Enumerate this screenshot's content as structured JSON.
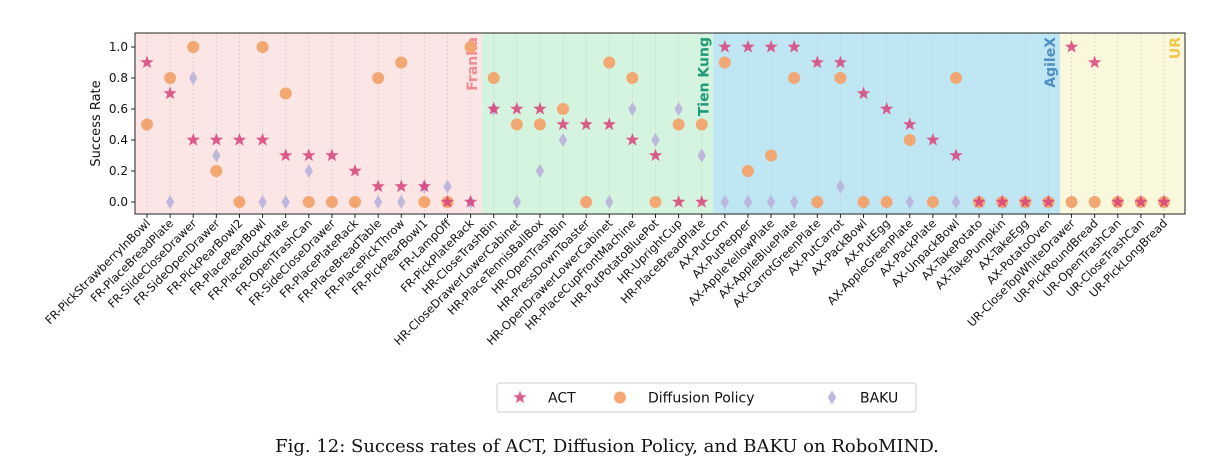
{
  "chart_data": {
    "type": "scatter",
    "ylabel": "Success Rate",
    "ylim": [
      -0.15,
      1.1
    ],
    "yticks": [
      "0.0",
      "0.2",
      "0.4",
      "0.6",
      "0.8",
      "1.0"
    ],
    "grid": "dotted vertical",
    "legend_position": "bottom-center",
    "categories": [
      "FR-PickStrawberryInBowl",
      "FR-PlaceBreadPlate",
      "FR-SlideCloseDrawer",
      "FR-SideOpenDrawer",
      "FR-PickPearBowl2",
      "FR-PlacePearBowl",
      "FR-PlaceBlockPlate",
      "FR-OpenTrashCan",
      "FR-SideCloseDrawer",
      "FR-PlacePlateRack",
      "FR-PlaceBreadTable",
      "FR-PlacePickThrow",
      "FR-PickPearBowl1",
      "FR-LampOff",
      "FR-PickPlateRack",
      "HR-CloseTrashBin",
      "HR-CloseDrawerLowerCabinet",
      "HR-PlaceTennisBallBox",
      "HR-OpenTrashBin",
      "HR-PressDownToaster",
      "HR-OpenDrawerLowerCabinet",
      "HR-PlaceCupFrontMachine",
      "HR-PutPotatoBluePot",
      "HR-UprightCup",
      "HR-PlaceBreadPlate",
      "AX-PutCorn",
      "AX-PutPepper",
      "AX-AppleYellowPlate",
      "AX-AppleBluePlate",
      "AX-CarrotGreenPlate",
      "AX-PutCarrot",
      "AX-PackBowl",
      "AX-PutEgg",
      "AX-AppleGreenPlate",
      "AX-PackPlate",
      "AX-UnpackBowl",
      "AX-TakePotato",
      "AX-TakePumpkin",
      "AX-TakeEgg",
      "AX-PotatoOven",
      "UR-CloseTopWhiteDrawer",
      "UR-PickRoundBread",
      "UR-OpenTrashCan",
      "UR-CloseTrashCan",
      "UR-PickLongBread"
    ],
    "regions": [
      {
        "label": "Franka",
        "start": 0,
        "end": 14,
        "color": "#fbe5e5",
        "label_color": "#f28b90"
      },
      {
        "label": "Tien Kung",
        "start": 15,
        "end": 24,
        "color": "#d4f4df",
        "label_color": "#1e9a78"
      },
      {
        "label": "AgileX",
        "start": 25,
        "end": 39,
        "color": "#bfe6f3",
        "label_color": "#4f8fc2"
      },
      {
        "label": "UR",
        "start": 40,
        "end": 44,
        "color": "#faf8dc",
        "label_color": "#f2c84b"
      }
    ],
    "series": [
      {
        "name": "ACT",
        "marker": "star",
        "color": "#d8427a",
        "values": [
          0.9,
          0.7,
          0.4,
          0.4,
          0.4,
          0.4,
          0.3,
          0.3,
          0.3,
          0.2,
          0.1,
          0.1,
          0.1,
          0.0,
          0.0,
          0.6,
          0.6,
          0.6,
          0.5,
          0.5,
          0.5,
          0.4,
          0.3,
          0.0,
          0.0,
          1.0,
          1.0,
          1.0,
          1.0,
          0.9,
          0.9,
          0.7,
          0.6,
          0.5,
          0.4,
          0.3,
          0.0,
          0.0,
          0.0,
          0.0,
          1.0,
          0.9,
          0.0,
          0.0,
          0.0
        ]
      },
      {
        "name": "Diffusion Policy",
        "marker": "circle",
        "color": "#f2a36b",
        "values": [
          0.5,
          0.8,
          1.0,
          0.2,
          0.0,
          1.0,
          0.7,
          0.0,
          0.0,
          0.0,
          0.8,
          0.9,
          0.0,
          0.0,
          1.0,
          0.8,
          0.5,
          0.5,
          0.6,
          0.0,
          0.9,
          0.8,
          0.0,
          0.5,
          0.5,
          0.9,
          0.2,
          0.3,
          0.8,
          0.0,
          0.8,
          0.0,
          0.0,
          0.4,
          0.0,
          0.8,
          0.0,
          0.0,
          0.0,
          0.0,
          0.0,
          0.0,
          0.0,
          0.0,
          0.0
        ]
      },
      {
        "name": "BAKU",
        "marker": "diamond",
        "color": "#b9b1dc",
        "values": [
          0.5,
          0.0,
          0.8,
          0.3,
          0.0,
          0.0,
          0.0,
          0.2,
          0.0,
          0.0,
          0.0,
          0.0,
          0.1,
          0.1,
          0.0,
          0.6,
          0.0,
          0.2,
          0.4,
          0.0,
          0.0,
          0.6,
          0.4,
          0.6,
          0.3,
          0.0,
          0.0,
          0.0,
          0.0,
          0.0,
          0.1,
          0.0,
          0.0,
          0.0,
          0.0,
          0.0,
          0.0,
          0.0,
          0.0,
          0.0,
          0.0,
          0.0,
          0.0,
          0.0,
          0.0
        ]
      }
    ]
  },
  "caption": "Fig. 12: Success rates of ACT, Diffusion Policy, and BAKU on RoboMIND."
}
